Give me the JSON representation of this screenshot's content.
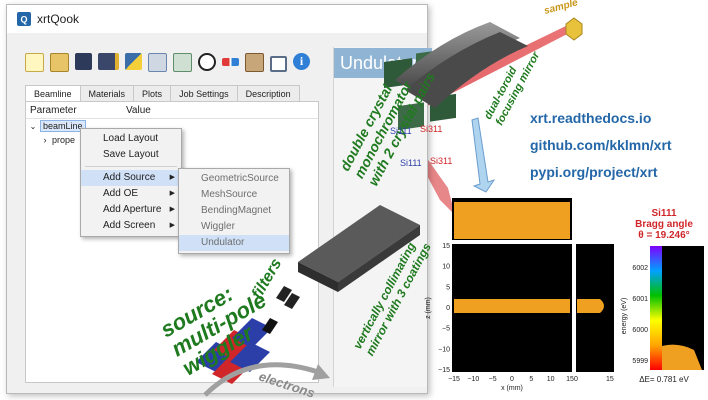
{
  "window": {
    "title": "xrtQook"
  },
  "toolbar": {
    "icons": [
      "new-icon",
      "open-icon",
      "save-icon",
      "save-as-icon",
      "python-icon",
      "export-icon",
      "import-icon",
      "run-icon",
      "glasses-icon",
      "gpu-icon",
      "home-icon",
      "info-icon"
    ]
  },
  "tabs": [
    "Beamline",
    "Materials",
    "Plots",
    "Job Settings",
    "Description"
  ],
  "tree": {
    "header": {
      "parameter": "Parameter",
      "value": "Value"
    },
    "root": "beamLine",
    "child": "prope"
  },
  "context_menu": {
    "items": [
      "Load Layout",
      "Save Layout",
      "Add Source",
      "Add OE",
      "Add Aperture",
      "Add Screen"
    ],
    "highlighted": "Add Source"
  },
  "submenu": {
    "items": [
      "GeometricSource",
      "MeshSource",
      "BendingMagnet",
      "Wiggler",
      "Undulator"
    ],
    "highlighted": "Undulator"
  },
  "right_panel": {
    "title": "Undulator"
  },
  "links": [
    "xrt.readthedocs.io",
    "github.com/kklmn/xrt",
    "pypi.org/project/xrt"
  ],
  "labels": {
    "source": [
      "source:",
      "multi-pole",
      "wiggler"
    ],
    "filters": "filters",
    "electrons": "electrons",
    "sample": "sample",
    "mirror1": [
      "vertically collimating",
      "mirror with 3 coatings"
    ],
    "dcm": [
      "double crystal",
      "monochromator",
      "with 2 crystal pairs"
    ],
    "mirror2": [
      "dual-toroid",
      "focusing mirror"
    ],
    "crystals": [
      "Si111",
      "Si311",
      "Si111",
      "Si311"
    ]
  },
  "plot": {
    "xlabel": "x (mm)",
    "ylabel": "z (mm)",
    "xticks": [
      "−15",
      "−10",
      "−5",
      "0",
      "5",
      "10",
      "15"
    ],
    "yticks": [
      "−15",
      "−10",
      "−5",
      "0",
      "5",
      "10",
      "15"
    ],
    "side_ticks": [
      "0",
      "15"
    ]
  },
  "energy_bar": {
    "title": [
      "Si111",
      "Bragg angle",
      "θ = 19.246°"
    ],
    "ylabel": "energy (eV)",
    "ticks": [
      "6002",
      "6001",
      "6000",
      "5999"
    ],
    "footer": "ΔE= 0.781 eV"
  },
  "colors": {
    "accent": "#2467a8",
    "label_green": "#1f7a1f",
    "beam": "#d8262a",
    "plot_beam": "#f0a020"
  }
}
